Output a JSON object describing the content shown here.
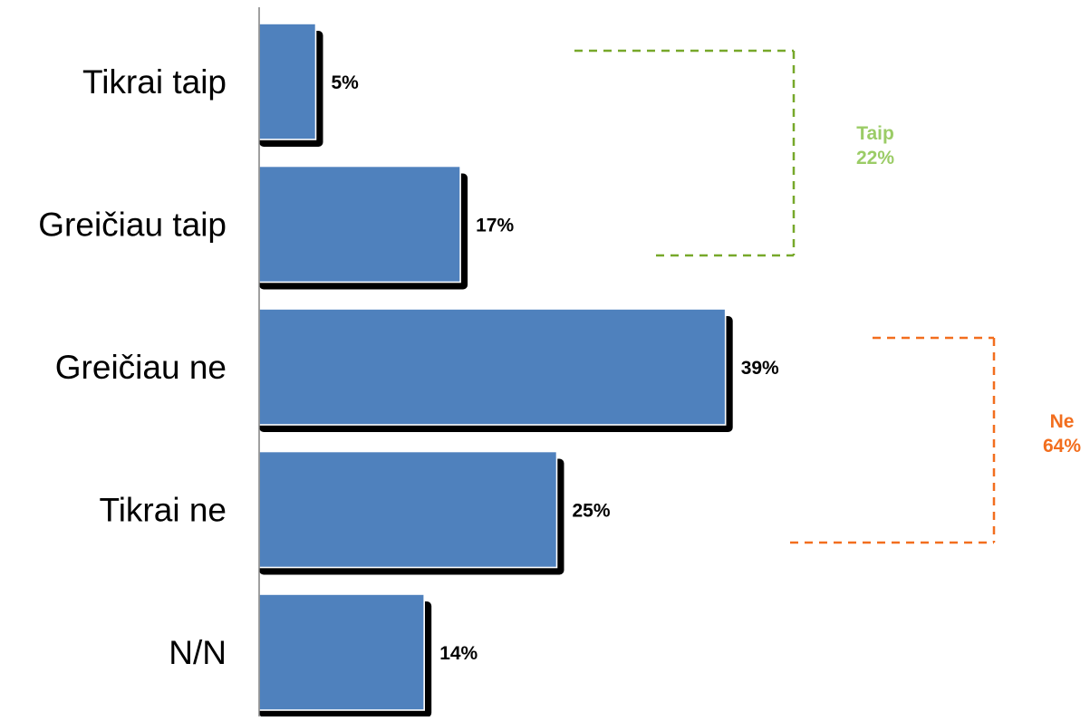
{
  "chart_data": {
    "type": "bar",
    "orientation": "horizontal",
    "categories": [
      "Tikrai taip",
      "Greičiau taip",
      "Greičiau ne",
      "Tikrai ne",
      "N/N"
    ],
    "values": [
      5,
      17,
      39,
      25,
      14
    ],
    "value_labels": [
      "5%",
      "17%",
      "39%",
      "25%",
      "14%"
    ],
    "bar_color": "#4f81bd",
    "xlim": [
      0,
      50
    ],
    "grid": false,
    "legend": "none",
    "groups": [
      {
        "label": "Taip",
        "value_label": "22%",
        "color": "#9bcc66",
        "bracket_color": "#77a82a",
        "categories": [
          "Tikrai taip",
          "Greičiau taip"
        ]
      },
      {
        "label": "Ne",
        "value_label": "64%",
        "color": "#f26e1e",
        "bracket_color": "#f26e1e",
        "categories": [
          "Greičiau ne",
          "Tikrai ne"
        ]
      }
    ]
  }
}
